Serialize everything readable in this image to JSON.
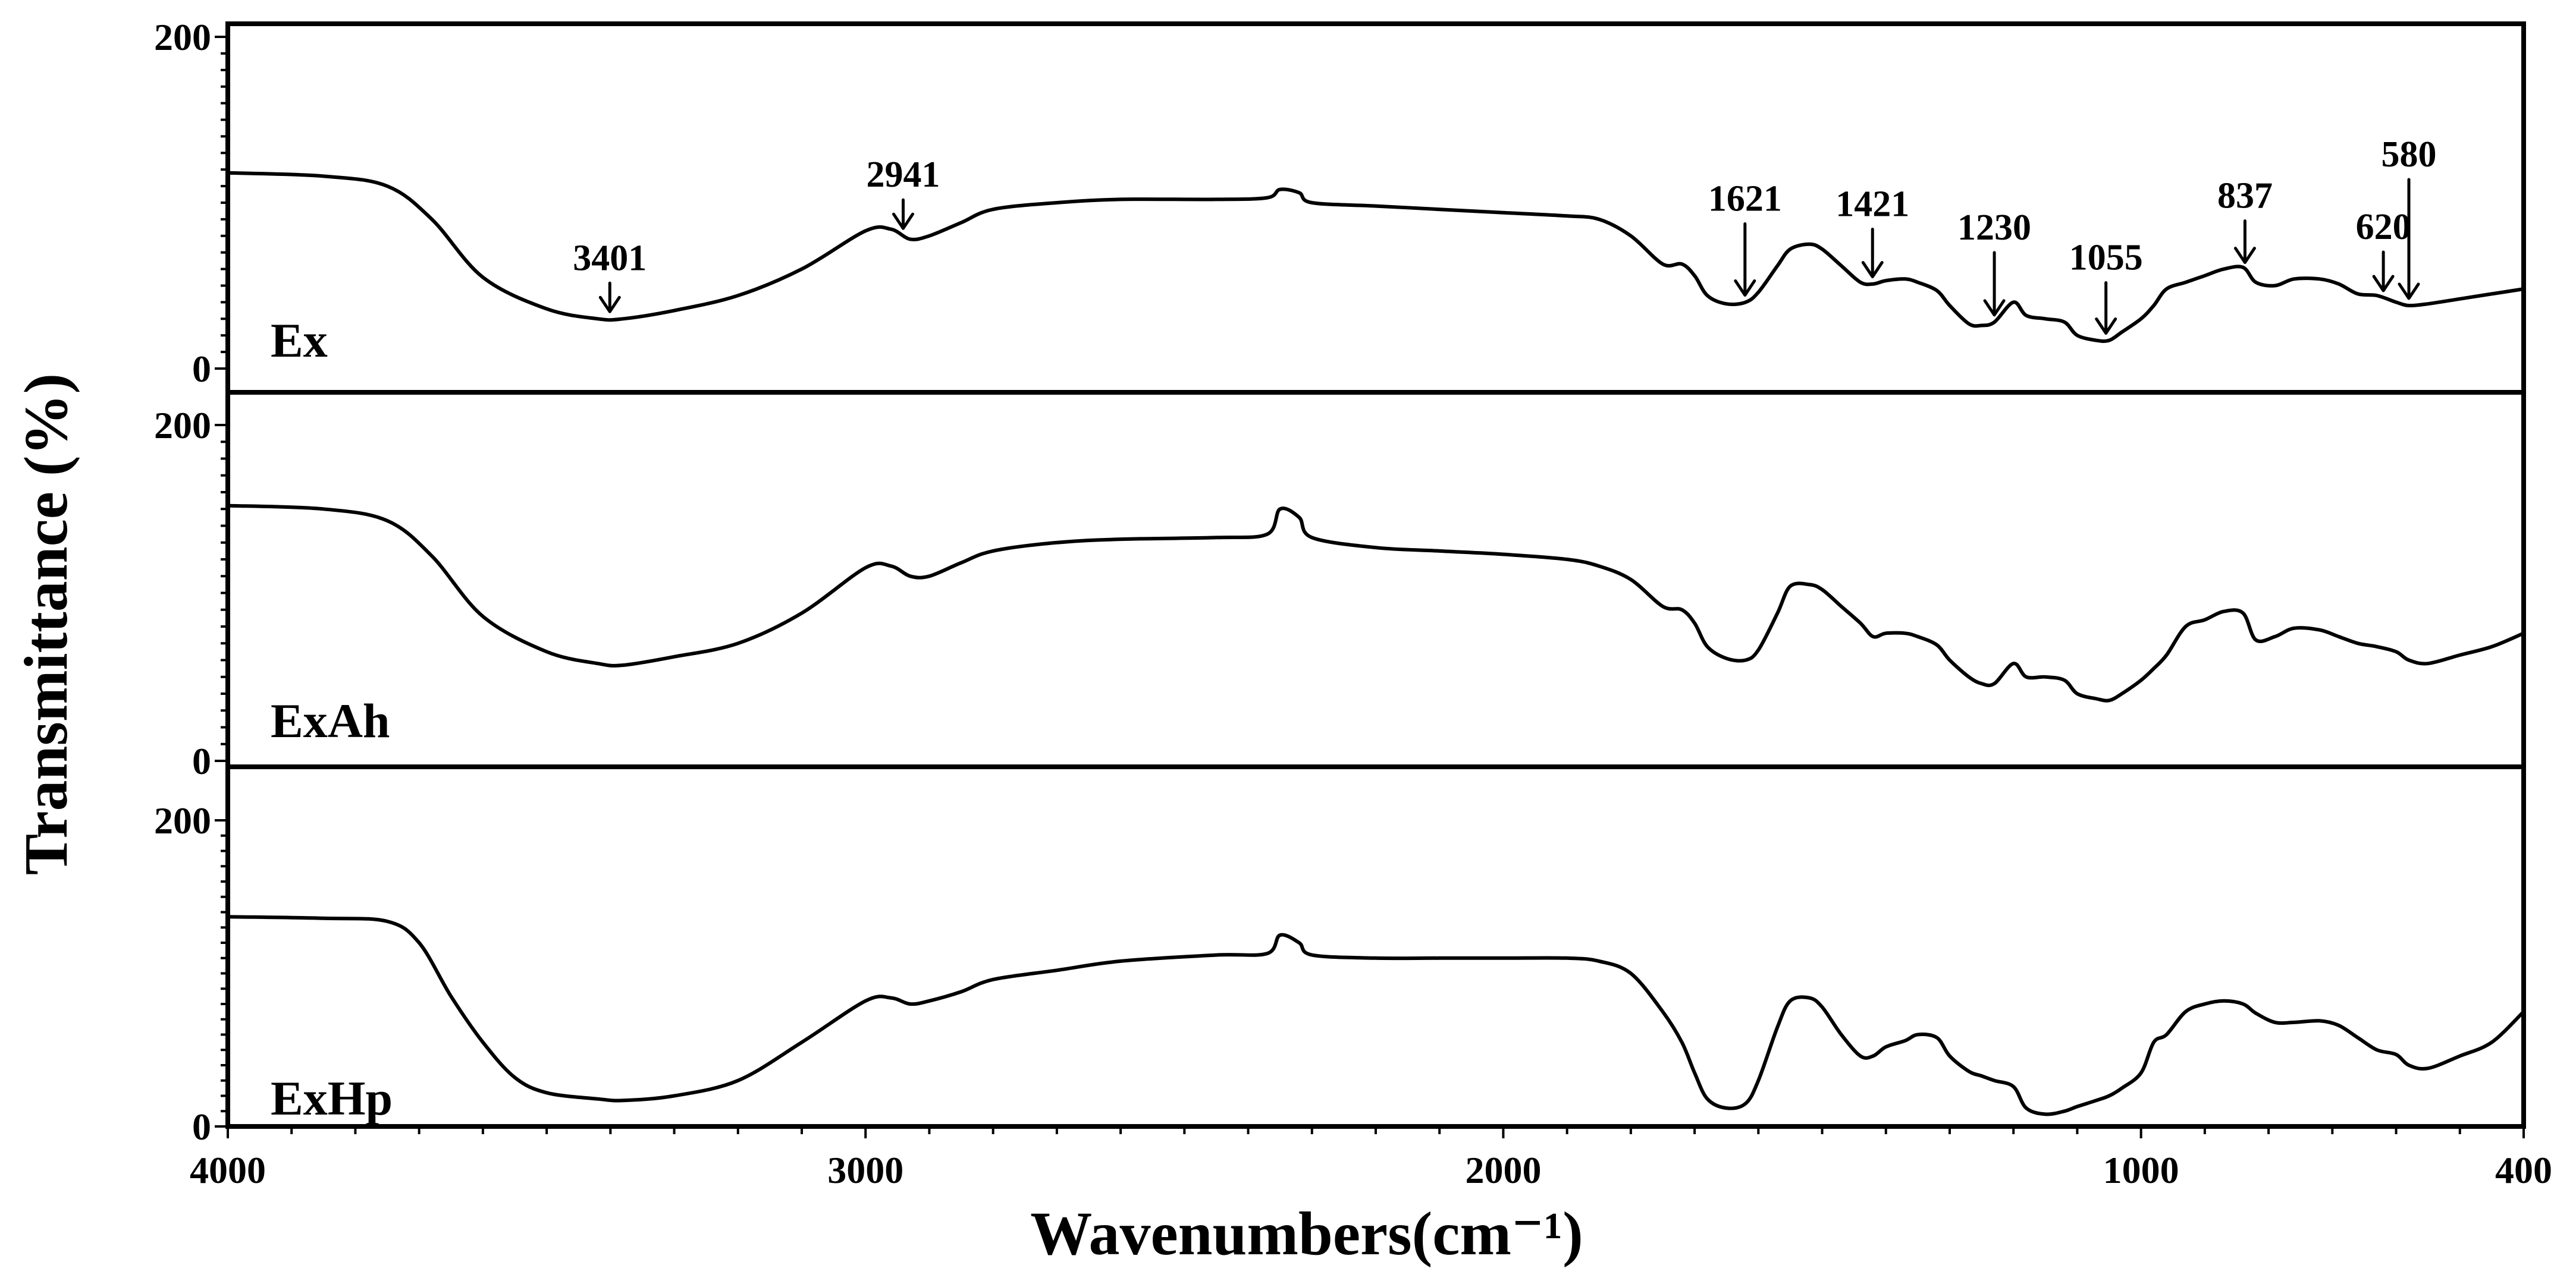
{
  "chart_data": {
    "type": "line",
    "xlabel": "Wavenumbers(cm⁻¹)",
    "ylabel": "Transmittance (%)",
    "xlim": [
      4000,
      400
    ],
    "x_ticks": [
      "4000",
      "3000",
      "2000",
      "1000",
      "400"
    ],
    "grid": false,
    "panels": [
      {
        "name": "Ex",
        "ylim": [
          0,
          200
        ],
        "y_ticks": [
          "200",
          "0"
        ],
        "x": [
          4000,
          3850,
          3750,
          3680,
          3600,
          3500,
          3420,
          3380,
          3300,
          3200,
          3100,
          3000,
          2960,
          2930,
          2900,
          2850,
          2800,
          2700,
          2600,
          2450,
          2370,
          2350,
          2320,
          2300,
          2200,
          2100,
          2000,
          1900,
          1850,
          1800,
          1750,
          1720,
          1700,
          1680,
          1650,
          1620,
          1600,
          1570,
          1550,
          1520,
          1500,
          1470,
          1440,
          1420,
          1400,
          1370,
          1350,
          1320,
          1300,
          1270,
          1250,
          1230,
          1200,
          1180,
          1150,
          1120,
          1100,
          1070,
          1050,
          1030,
          1000,
          980,
          960,
          930,
          900,
          870,
          840,
          820,
          790,
          760,
          720,
          690,
          660,
          630,
          600,
          580,
          550,
          500,
          450,
          400
        ],
        "y": [
          118,
          116,
          110,
          90,
          55,
          36,
          30,
          30,
          35,
          44,
          60,
          83,
          84,
          78,
          80,
          88,
          96,
          100,
          102,
          102,
          103,
          108,
          106,
          100,
          98,
          96,
          94,
          92,
          90,
          80,
          63,
          63,
          56,
          44,
          39,
          40,
          46,
          62,
          72,
          75,
          72,
          62,
          52,
          51,
          53,
          54,
          52,
          47,
          38,
          27,
          26,
          28,
          40,
          32,
          30,
          28,
          20,
          17,
          17,
          22,
          30,
          38,
          48,
          52,
          56,
          60,
          61,
          52,
          50,
          54,
          54,
          51,
          45,
          44,
          40,
          38,
          39,
          42,
          45,
          48
        ]
      },
      {
        "name": "ExAh",
        "ylim": [
          0,
          200
        ],
        "y_ticks": [
          "200",
          "0"
        ],
        "x": [
          4000,
          3850,
          3750,
          3680,
          3600,
          3500,
          3420,
          3380,
          3300,
          3200,
          3100,
          3000,
          2960,
          2930,
          2900,
          2850,
          2800,
          2700,
          2600,
          2450,
          2370,
          2350,
          2320,
          2300,
          2200,
          2100,
          2000,
          1900,
          1850,
          1800,
          1750,
          1720,
          1700,
          1680,
          1650,
          1620,
          1600,
          1570,
          1550,
          1520,
          1500,
          1470,
          1440,
          1420,
          1400,
          1370,
          1350,
          1320,
          1300,
          1270,
          1250,
          1230,
          1200,
          1180,
          1150,
          1120,
          1100,
          1070,
          1050,
          1030,
          1000,
          980,
          960,
          930,
          900,
          870,
          840,
          820,
          790,
          760,
          720,
          690,
          660,
          630,
          600,
          580,
          550,
          500,
          450,
          400
        ],
        "y": [
          152,
          150,
          143,
          122,
          86,
          65,
          58,
          57,
          62,
          70,
          88,
          115,
          116,
          110,
          110,
          118,
          125,
          130,
          132,
          133,
          135,
          150,
          145,
          133,
          127,
          125,
          123,
          120,
          116,
          108,
          92,
          90,
          82,
          68,
          61,
          60,
          66,
          88,
          104,
          105,
          102,
          92,
          82,
          74,
          76,
          76,
          74,
          69,
          60,
          50,
          46,
          46,
          58,
          50,
          50,
          48,
          40,
          37,
          36,
          40,
          48,
          55,
          63,
          80,
          84,
          89,
          88,
          72,
          74,
          79,
          78,
          74,
          70,
          68,
          65,
          60,
          58,
          63,
          68,
          76
        ]
      },
      {
        "name": "ExHp",
        "ylim": [
          0,
          200
        ],
        "y_ticks": [
          "200",
          "0"
        ],
        "x": [
          4000,
          3850,
          3750,
          3700,
          3650,
          3600,
          3550,
          3500,
          3420,
          3380,
          3300,
          3200,
          3100,
          3000,
          2960,
          2930,
          2900,
          2850,
          2800,
          2700,
          2600,
          2450,
          2370,
          2350,
          2320,
          2300,
          2200,
          2100,
          2000,
          1900,
          1850,
          1800,
          1750,
          1720,
          1700,
          1680,
          1650,
          1620,
          1600,
          1570,
          1550,
          1520,
          1500,
          1470,
          1440,
          1420,
          1400,
          1370,
          1350,
          1320,
          1300,
          1270,
          1250,
          1230,
          1200,
          1180,
          1150,
          1120,
          1100,
          1070,
          1050,
          1030,
          1000,
          980,
          960,
          930,
          900,
          870,
          840,
          820,
          790,
          760,
          720,
          690,
          660,
          630,
          600,
          580,
          550,
          500,
          450,
          400
        ],
        "y": [
          137,
          136,
          134,
          120,
          85,
          55,
          32,
          22,
          18,
          17,
          20,
          30,
          55,
          82,
          84,
          80,
          82,
          88,
          96,
          102,
          108,
          112,
          113,
          125,
          120,
          112,
          110,
          110,
          110,
          110,
          108,
          100,
          75,
          55,
          35,
          18,
          12,
          15,
          30,
          65,
          82,
          84,
          78,
          60,
          46,
          46,
          52,
          56,
          60,
          58,
          46,
          36,
          33,
          30,
          26,
          12,
          8,
          10,
          13,
          17,
          20,
          25,
          35,
          55,
          60,
          75,
          80,
          82,
          80,
          74,
          68,
          68,
          69,
          66,
          58,
          50,
          47,
          40,
          38,
          46,
          55,
          75
        ]
      }
    ],
    "annotations": [
      {
        "label": "3401",
        "x": 3401,
        "panel": "Ex"
      },
      {
        "label": "2941",
        "x": 2941,
        "panel": "Ex"
      },
      {
        "label": "1621",
        "x": 1621,
        "panel": "Ex"
      },
      {
        "label": "1421",
        "x": 1421,
        "panel": "Ex"
      },
      {
        "label": "1230",
        "x": 1230,
        "panel": "Ex"
      },
      {
        "label": "1055",
        "x": 1055,
        "panel": "Ex"
      },
      {
        "label": "837",
        "x": 837,
        "panel": "Ex"
      },
      {
        "label": "620",
        "x": 620,
        "panel": "Ex"
      },
      {
        "label": "580",
        "x": 580,
        "panel": "Ex"
      }
    ]
  }
}
